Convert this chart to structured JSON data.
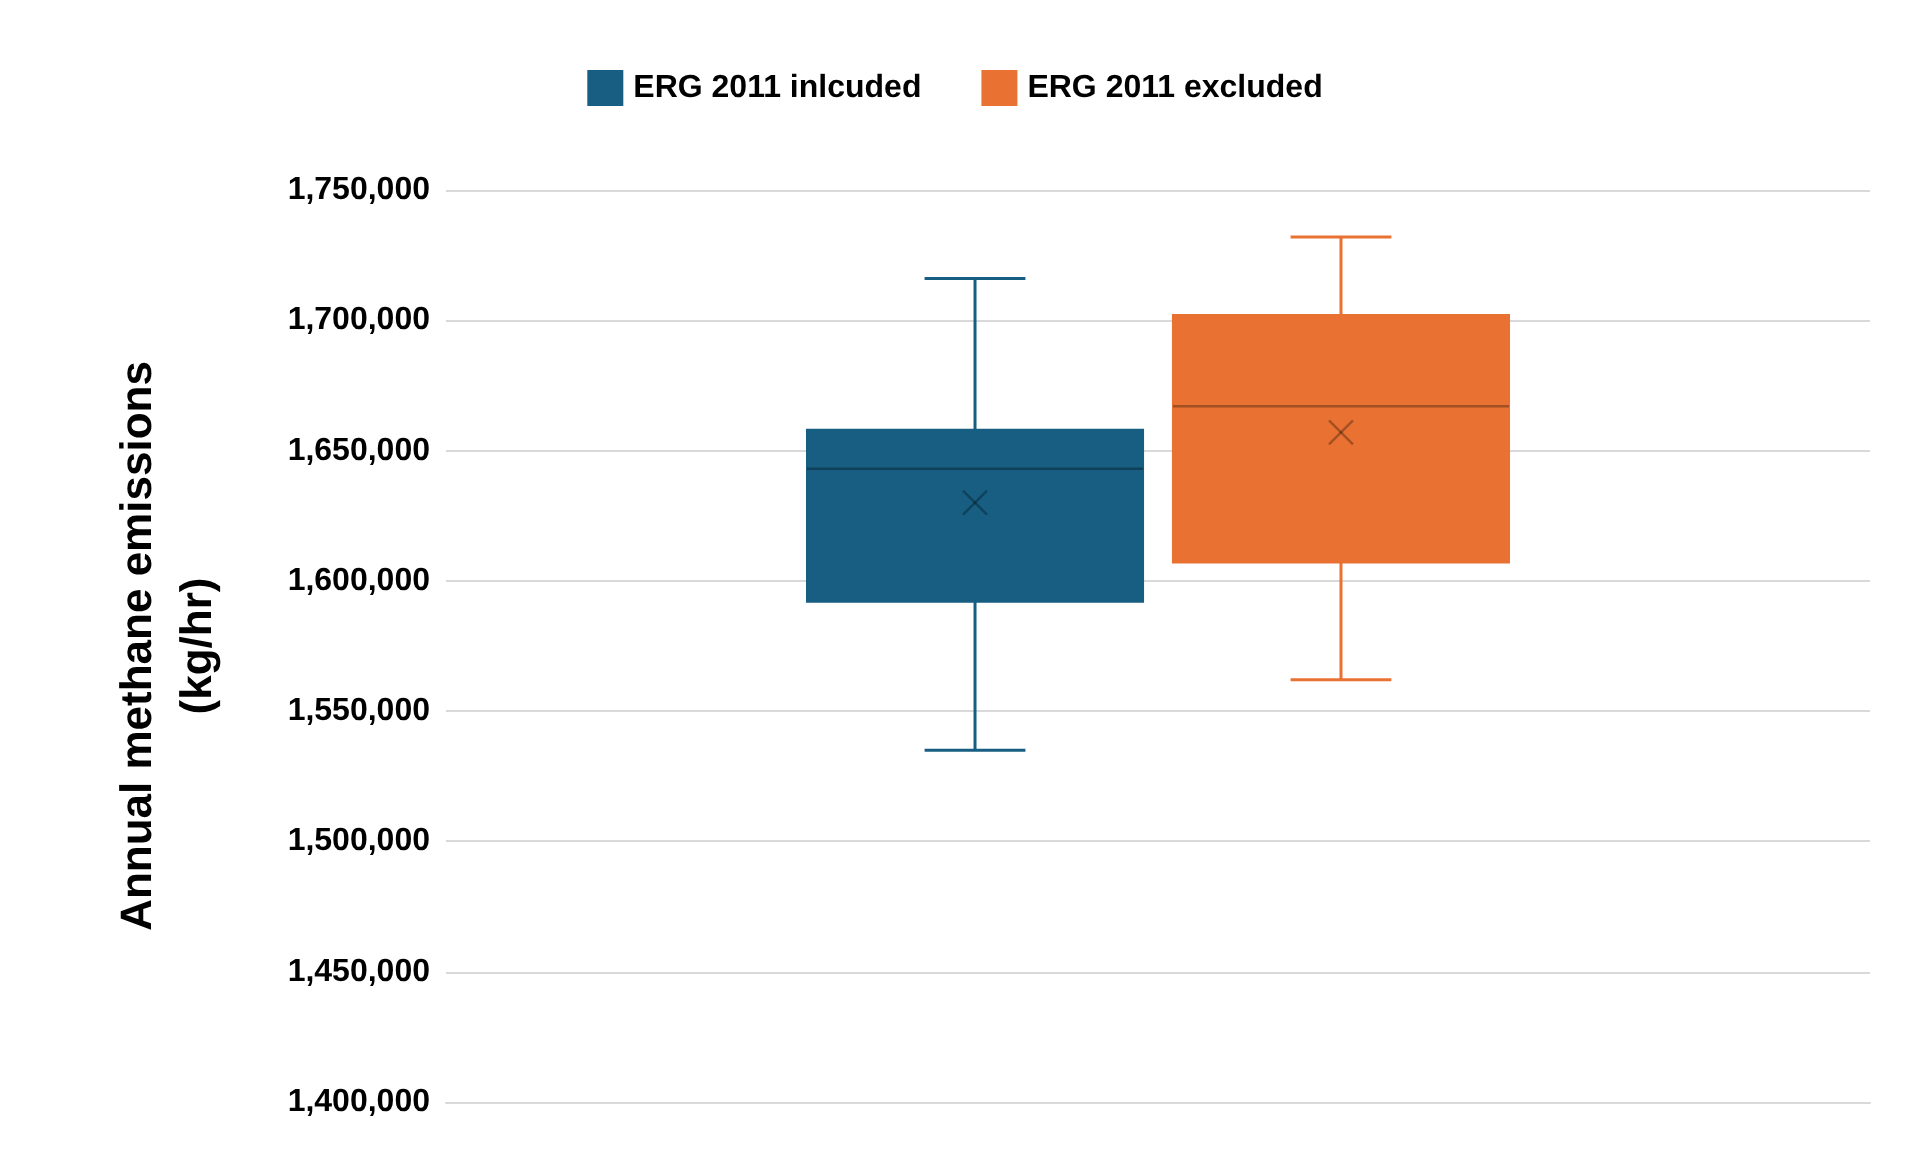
{
  "chart_data": {
    "type": "box",
    "ylabel": "Annual methane emissions (kg/hr)",
    "categories": [
      null
    ],
    "series": [
      {
        "name": "ERG 2011 inlcuded",
        "color": "#175e82",
        "boxes": [
          {
            "low": 1535000,
            "q1": 1592000,
            "median": 1643000,
            "q3": 1658000,
            "high": 1716000,
            "mean": 1630000
          }
        ]
      },
      {
        "name": "ERG 2011 excluded",
        "color": "#e97132",
        "boxes": [
          {
            "low": 1562000,
            "q1": 1607000,
            "median": 1667000,
            "q3": 1702000,
            "high": 1732000,
            "mean": 1657000
          }
        ]
      }
    ],
    "ylim": [
      1400000,
      1750000
    ],
    "yticks": [
      {
        "value": 1400000,
        "label": "1,400,000"
      },
      {
        "value": 1450000,
        "label": "1,450,000"
      },
      {
        "value": 1500000,
        "label": "1,500,000"
      },
      {
        "value": 1550000,
        "label": "1,550,000"
      },
      {
        "value": 1600000,
        "label": "1,600,000"
      },
      {
        "value": 1650000,
        "label": "1,650,000"
      },
      {
        "value": 1700000,
        "label": "1,700,000"
      },
      {
        "value": 1750000,
        "label": "1,750,000"
      }
    ],
    "grid": "y",
    "legend": "top"
  }
}
